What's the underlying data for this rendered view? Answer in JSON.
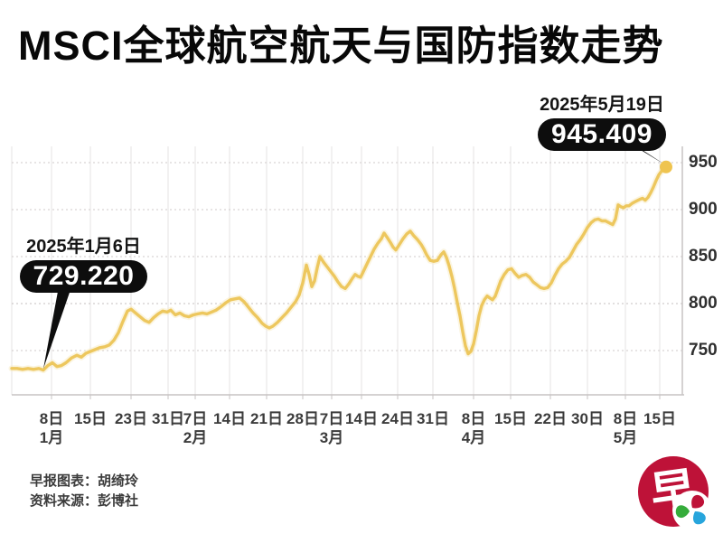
{
  "title": "MSCI全球航空航天与国防指数走势",
  "callouts": {
    "start": {
      "date": "2025年1月6日",
      "value": "729.220"
    },
    "end": {
      "date": "2025年5月19日",
      "value": "945.409"
    }
  },
  "footer": {
    "credit": "早报图表：胡绮玲",
    "source": "资料来源：彭博社"
  },
  "logo": {
    "char": "早"
  },
  "colors": {
    "line": "#EDC75E",
    "line_halo": "#F8ECC9",
    "marker": "#EFC44F",
    "grid_vertical": "#E6E3E3",
    "grid_dotted": "#CFCACA",
    "grid_dotted_strong": "#C4BFBF",
    "axis": "#C7C3C3",
    "tick_text": "#3B3B3B",
    "callout_black": "#0D0D0D",
    "logo_red": "#BE1238",
    "logo_green": "#35AC3B",
    "logo_blue": "#27A5DC"
  },
  "chart_data": {
    "type": "line",
    "title": "MSCI全球航空航天与国防指数走势",
    "xlabel": "",
    "ylabel": "",
    "ylim": [
      720,
      965
    ],
    "yticks": [
      750,
      800,
      850,
      900,
      950
    ],
    "grid": "vertical solid weekly + horizontal dotted at 50s",
    "legend": "none",
    "x_axis": {
      "unit": "px-position of weekly trading dates",
      "ticks": [
        {
          "x": 57,
          "label": "8日"
        },
        {
          "x": 100,
          "label": "15日"
        },
        {
          "x": 145,
          "label": "23日"
        },
        {
          "x": 186,
          "label": "31日"
        },
        {
          "x": 216,
          "label": "7日"
        },
        {
          "x": 254,
          "label": "14日"
        },
        {
          "x": 295,
          "label": "21日"
        },
        {
          "x": 335,
          "label": "28日"
        },
        {
          "x": 367,
          "label": "7日"
        },
        {
          "x": 400,
          "label": "14日"
        },
        {
          "x": 440,
          "label": "24日"
        },
        {
          "x": 479,
          "label": "31日"
        },
        {
          "x": 524,
          "label": "8日"
        },
        {
          "x": 565,
          "label": "15日"
        },
        {
          "x": 609,
          "label": "22日"
        },
        {
          "x": 650,
          "label": "30日"
        },
        {
          "x": 692,
          "label": "8日"
        },
        {
          "x": 730,
          "label": "15日"
        }
      ],
      "months": [
        {
          "x": 57,
          "label": "1月"
        },
        {
          "x": 216,
          "label": "2月"
        },
        {
          "x": 367,
          "label": "3月"
        },
        {
          "x": 524,
          "label": "4月"
        },
        {
          "x": 692,
          "label": "5月"
        }
      ]
    },
    "annotations": [
      {
        "date": "2025年1月6日",
        "value": 729.22
      },
      {
        "date": "2025年5月19日",
        "value": 945.409
      }
    ],
    "series": [
      {
        "name": "MSCI全球航空航天与国防指数",
        "color": "#EDC75E",
        "points": [
          [
            13,
            731
          ],
          [
            19,
            731
          ],
          [
            25,
            730
          ],
          [
            31,
            731
          ],
          [
            37,
            730
          ],
          [
            43,
            731
          ],
          [
            48,
            729.2
          ],
          [
            53,
            734
          ],
          [
            58,
            737
          ],
          [
            63,
            733
          ],
          [
            68,
            734
          ],
          [
            73,
            737
          ],
          [
            79,
            742
          ],
          [
            85,
            745
          ],
          [
            90,
            743
          ],
          [
            95,
            747
          ],
          [
            100,
            749
          ],
          [
            105,
            751
          ],
          [
            110,
            753
          ],
          [
            116,
            754
          ],
          [
            121,
            756
          ],
          [
            126,
            761
          ],
          [
            131,
            769
          ],
          [
            136,
            781
          ],
          [
            141,
            792
          ],
          [
            145,
            794
          ],
          [
            150,
            790
          ],
          [
            155,
            786
          ],
          [
            160,
            782
          ],
          [
            165,
            780
          ],
          [
            170,
            785
          ],
          [
            175,
            789
          ],
          [
            180,
            792
          ],
          [
            185,
            791
          ],
          [
            189,
            793
          ],
          [
            194,
            788
          ],
          [
            199,
            790
          ],
          [
            204,
            787
          ],
          [
            209,
            786
          ],
          [
            214,
            788
          ],
          [
            219,
            789
          ],
          [
            224,
            790
          ],
          [
            229,
            789
          ],
          [
            234,
            791
          ],
          [
            239,
            793
          ],
          [
            245,
            797
          ],
          [
            250,
            801
          ],
          [
            255,
            804
          ],
          [
            260,
            805
          ],
          [
            265,
            806
          ],
          [
            270,
            802
          ],
          [
            275,
            796
          ],
          [
            280,
            790
          ],
          [
            285,
            785
          ],
          [
            290,
            779
          ],
          [
            294,
            776
          ],
          [
            298,
            774
          ],
          [
            302,
            776
          ],
          [
            307,
            780
          ],
          [
            312,
            785
          ],
          [
            317,
            790
          ],
          [
            322,
            796
          ],
          [
            327,
            802
          ],
          [
            331,
            809
          ],
          [
            335,
            822
          ],
          [
            339,
            841
          ],
          [
            342,
            831
          ],
          [
            345,
            818
          ],
          [
            348,
            824
          ],
          [
            351,
            838
          ],
          [
            354,
            850
          ],
          [
            358,
            844
          ],
          [
            362,
            839
          ],
          [
            366,
            834
          ],
          [
            370,
            829
          ],
          [
            374,
            823
          ],
          [
            378,
            818
          ],
          [
            382,
            816
          ],
          [
            386,
            821
          ],
          [
            390,
            827
          ],
          [
            393,
            831
          ],
          [
            396,
            829
          ],
          [
            399,
            828
          ],
          [
            402,
            834
          ],
          [
            406,
            842
          ],
          [
            410,
            850
          ],
          [
            414,
            858
          ],
          [
            418,
            864
          ],
          [
            422,
            869
          ],
          [
            425,
            875
          ],
          [
            428,
            871
          ],
          [
            432,
            865
          ],
          [
            435,
            860
          ],
          [
            438,
            857
          ],
          [
            442,
            863
          ],
          [
            446,
            869
          ],
          [
            450,
            874
          ],
          [
            454,
            877
          ],
          [
            458,
            872
          ],
          [
            462,
            868
          ],
          [
            466,
            863
          ],
          [
            469,
            858
          ],
          [
            472,
            852
          ],
          [
            476,
            846
          ],
          [
            480,
            845
          ],
          [
            484,
            846
          ],
          [
            488,
            852
          ],
          [
            491,
            855
          ],
          [
            494,
            849
          ],
          [
            497,
            840
          ],
          [
            500,
            829
          ],
          [
            503,
            816
          ],
          [
            506,
            801
          ],
          [
            509,
            787
          ],
          [
            512,
            770
          ],
          [
            515,
            755
          ],
          [
            518,
            746.5
          ],
          [
            521,
            749
          ],
          [
            524,
            757
          ],
          [
            527,
            771
          ],
          [
            530,
            787
          ],
          [
            533,
            798
          ],
          [
            536,
            804
          ],
          [
            539,
            808
          ],
          [
            542,
            806
          ],
          [
            545,
            804
          ],
          [
            548,
            808
          ],
          [
            551,
            816
          ],
          [
            554,
            824
          ],
          [
            558,
            831
          ],
          [
            562,
            836
          ],
          [
            566,
            837
          ],
          [
            570,
            832
          ],
          [
            574,
            828
          ],
          [
            578,
            830
          ],
          [
            582,
            831
          ],
          [
            586,
            828
          ],
          [
            590,
            823
          ],
          [
            594,
            820
          ],
          [
            598,
            817
          ],
          [
            602,
            816
          ],
          [
            606,
            817
          ],
          [
            610,
            822
          ],
          [
            614,
            830
          ],
          [
            618,
            837
          ],
          [
            622,
            842
          ],
          [
            626,
            845
          ],
          [
            630,
            849
          ],
          [
            634,
            856
          ],
          [
            638,
            863
          ],
          [
            642,
            868
          ],
          [
            646,
            874
          ],
          [
            650,
            881
          ],
          [
            654,
            886
          ],
          [
            658,
            889
          ],
          [
            662,
            890
          ],
          [
            666,
            888
          ],
          [
            670,
            888
          ],
          [
            674,
            886
          ],
          [
            678,
            884
          ],
          [
            681,
            890
          ],
          [
            684,
            905
          ],
          [
            687,
            903
          ],
          [
            690,
            902
          ],
          [
            693,
            904
          ],
          [
            696,
            904
          ],
          [
            700,
            907
          ],
          [
            704,
            909
          ],
          [
            708,
            911
          ],
          [
            711,
            912
          ],
          [
            714,
            910
          ],
          [
            717,
            913
          ],
          [
            720,
            918
          ],
          [
            723,
            924
          ],
          [
            726,
            931
          ],
          [
            729,
            937
          ],
          [
            732,
            941
          ],
          [
            735,
            944
          ],
          [
            737,
            945.4
          ]
        ]
      }
    ]
  }
}
